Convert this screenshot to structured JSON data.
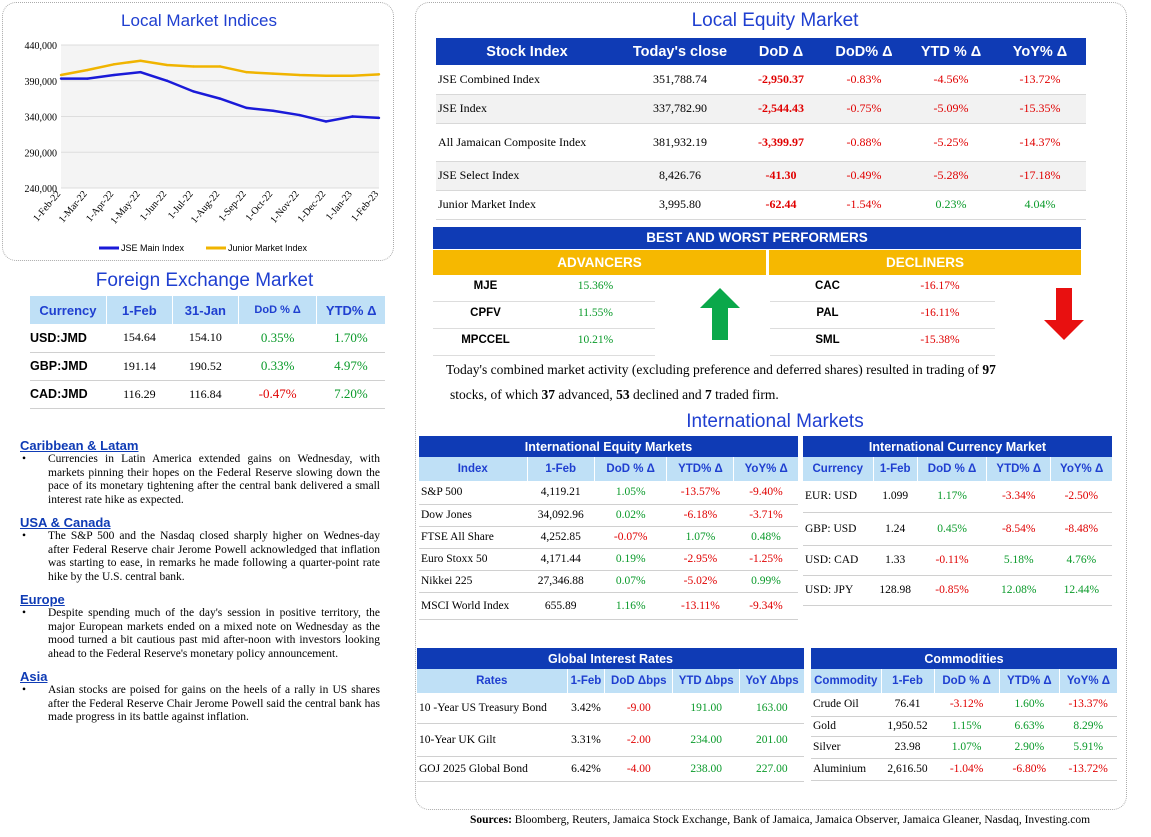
{
  "indices_chart": {
    "title": "Local Market Indices",
    "chart_data": {
      "type": "line",
      "title": "Local Market Indices",
      "x": [
        "1-Feb-22",
        "1-Mar-22",
        "1-Apr-22",
        "1-May-22",
        "1-Jun-22",
        "1-Jul-22",
        "1-Aug-22",
        "1-Sep-22",
        "1-Oct-22",
        "1-Nov-22",
        "1-Dec-22",
        "1-Jan-23",
        "1-Feb-23"
      ],
      "ylim": [
        240000,
        440000
      ],
      "yticks": [
        "440,000",
        "390,000",
        "340,000",
        "290,000",
        "240,000"
      ],
      "series": [
        {
          "name": "JSE Main Index",
          "color": "#1a1ad8",
          "values": [
            393000,
            393000,
            398000,
            402000,
            390000,
            375000,
            365000,
            352000,
            348000,
            342000,
            333000,
            340000,
            338000
          ]
        },
        {
          "name": "Junior Market Index",
          "color": "#f0b400",
          "values": [
            398000,
            405000,
            413000,
            418000,
            412000,
            410000,
            410000,
            402000,
            400000,
            398000,
            397000,
            397000,
            399000
          ]
        }
      ]
    }
  },
  "fx": {
    "title": "Foreign Exchange Market",
    "headers": [
      "Currency",
      "1-Feb",
      "31-Jan",
      "DoD % Δ",
      "YTD% Δ"
    ],
    "rows": [
      {
        "cur": "USD:JMD",
        "a": "154.64",
        "b": "154.10",
        "dod": "0.35%",
        "ytd": "1.70%"
      },
      {
        "cur": "GBP:JMD",
        "a": "191.14",
        "b": "190.52",
        "dod": "0.33%",
        "ytd": "4.97%"
      },
      {
        "cur": "CAD:JMD",
        "a": "116.29",
        "b": "116.84",
        "dod": "-0.47%",
        "ytd": "7.20%"
      }
    ]
  },
  "news": [
    {
      "heading": "Caribbean & Latam",
      "text": "Currencies in Latin America extended gains on Wednesday, with markets pinning their hopes on the Federal Reserve slowing down the pace of its monetary tightening after the central bank delivered a small interest rate hike as expected."
    },
    {
      "heading": "USA & Canada",
      "text": "The S&P 500 and the Nasdaq closed sharply higher on Wednes-day after Federal Reserve chair Jerome Powell acknowledged that inflation was starting to ease, in remarks he made following a quarter-point rate hike by the U.S. central bank."
    },
    {
      "heading": "Europe",
      "text": "Despite spending much of the day's session in positive territory, the major European markets ended on a mixed note on Wednesday as the mood turned a bit cautious past mid after-noon with investors looking ahead to the Federal Reserve's monetary policy announcement."
    },
    {
      "heading": "Asia",
      "text": "Asian stocks are poised for gains on the heels of a rally in US shares after the Federal Reserve Chair Jerome Powell said the central bank has made progress in its battle against inflation."
    }
  ],
  "equity": {
    "title": "Local Equity Market",
    "headers": [
      "Stock Index",
      "Today's close",
      "DoD  Δ",
      "DoD% Δ",
      "YTD % Δ",
      "YoY% Δ"
    ],
    "rows": [
      {
        "name": "JSE Combined Index",
        "close": "351,788.74",
        "dod": "-2,950.37",
        "dodp": "-0.83%",
        "ytd": "-4.56%",
        "yoy": "-13.72%"
      },
      {
        "name": "JSE Index",
        "close": "337,782.90",
        "dod": "-2,544.43",
        "dodp": "-0.75%",
        "ytd": "-5.09%",
        "yoy": "-15.35%"
      },
      {
        "name": "All Jamaican Composite Index",
        "close": "381,932.19",
        "dod": "-3,399.97",
        "dodp": "-0.88%",
        "ytd": "-5.25%",
        "yoy": "-14.37%"
      },
      {
        "name": "JSE Select Index",
        "close": "8,426.76",
        "dod": "-41.30",
        "dodp": "-0.49%",
        "ytd": "-5.28%",
        "yoy": "-17.18%"
      },
      {
        "name": "Junior Market Index",
        "close": "3,995.80",
        "dod": "-62.44",
        "dodp": "-1.54%",
        "ytd": "0.23%",
        "yoy": "4.04%"
      }
    ]
  },
  "performers": {
    "title": "BEST AND WORST PERFORMERS",
    "adv_label": "ADVANCERS",
    "dec_label": "DECLINERS",
    "advancers": [
      {
        "t": "MJE",
        "v": "15.36%"
      },
      {
        "t": "CPFV",
        "v": "11.55%"
      },
      {
        "t": "MPCCEL",
        "v": "10.21%"
      }
    ],
    "decliners": [
      {
        "t": "CAC",
        "v": "-16.17%"
      },
      {
        "t": "PAL",
        "v": "-16.11%"
      },
      {
        "t": "SML",
        "v": "-15.38%"
      }
    ]
  },
  "activity": {
    "p1": "Today's combined market activity (excluding preference and deferred shares) resulted in trading of ",
    "n1": "97",
    "p2": "stocks, of which ",
    "n2": "37",
    "p3": " advanced, ",
    "n3": "53",
    "p4": " declined and ",
    "n4": "7",
    "p5": " traded firm."
  },
  "intl": {
    "title": "International Markets",
    "equity": {
      "title": "International Equity Markets",
      "headers": [
        "Index",
        "1-Feb",
        "DoD % Δ",
        "YTD% Δ",
        "YoY% Δ"
      ],
      "rows": [
        {
          "n": "S&P 500",
          "v": "4,119.21",
          "d": "1.05%",
          "y": "-13.57%",
          "yy": "-9.40%"
        },
        {
          "n": "Dow Jones",
          "v": "34,092.96",
          "d": "0.02%",
          "y": "-6.18%",
          "yy": "-3.71%"
        },
        {
          "n": "FTSE All Share",
          "v": "4,252.85",
          "d": "-0.07%",
          "y": "1.07%",
          "yy": "0.48%"
        },
        {
          "n": "Euro Stoxx 50",
          "v": "4,171.44",
          "d": "0.19%",
          "y": "-2.95%",
          "yy": "-1.25%"
        },
        {
          "n": "Nikkei 225",
          "v": "27,346.88",
          "d": "0.07%",
          "y": "-5.02%",
          "yy": "0.99%"
        },
        {
          "n": "MSCI World Index",
          "v": "655.89",
          "d": "1.16%",
          "y": "-13.11%",
          "yy": "-9.34%"
        }
      ]
    },
    "currency": {
      "title": "International Currency Market",
      "headers": [
        "Currency",
        "1-Feb",
        "DoD % Δ",
        "YTD% Δ",
        "YoY% Δ"
      ],
      "rows": [
        {
          "n": "EUR: USD",
          "v": "1.099",
          "d": "1.17%",
          "y": "-3.34%",
          "yy": "-2.50%"
        },
        {
          "n": "GBP: USD",
          "v": "1.24",
          "d": "0.45%",
          "y": "-8.54%",
          "yy": "-8.48%"
        },
        {
          "n": "USD: CAD",
          "v": "1.33",
          "d": "-0.11%",
          "y": "5.18%",
          "yy": "4.76%"
        },
        {
          "n": "USD: JPY",
          "v": "128.98",
          "d": "-0.85%",
          "y": "12.08%",
          "yy": "12.44%"
        }
      ]
    },
    "rates": {
      "title": "Global Interest Rates",
      "headers": [
        "Rates",
        "1-Feb",
        "DoD Δbps",
        "YTD Δbps",
        "YoY Δbps"
      ],
      "rows": [
        {
          "n": "10 -Year US Treasury Bond",
          "v": "3.42%",
          "d": "-9.00",
          "y": "191.00",
          "yy": "163.00"
        },
        {
          "n": "10-Year UK Gilt",
          "v": "3.31%",
          "d": "-2.00",
          "y": "234.00",
          "yy": "201.00"
        },
        {
          "n": "GOJ 2025 Global Bond",
          "v": "6.42%",
          "d": "-4.00",
          "y": "238.00",
          "yy": "227.00"
        }
      ]
    },
    "commodities": {
      "title": "Commodities",
      "headers": [
        "Commodity",
        "1-Feb",
        "DoD % Δ",
        "YTD% Δ",
        "YoY% Δ"
      ],
      "rows": [
        {
          "n": "Crude Oil",
          "v": "76.41",
          "d": "-3.12%",
          "y": "1.60%",
          "yy": "-13.37%"
        },
        {
          "n": "Gold",
          "v": "1,950.52",
          "d": "1.15%",
          "y": "6.63%",
          "yy": "8.29%"
        },
        {
          "n": "Silver",
          "v": "23.98",
          "d": "1.07%",
          "y": "2.90%",
          "yy": "5.91%"
        },
        {
          "n": "Aluminium",
          "v": "2,616.50",
          "d": "-1.04%",
          "y": "-6.80%",
          "yy": "-13.72%"
        }
      ]
    }
  },
  "sources": {
    "label": "Sources:",
    "text": " Bloomberg, Reuters, Jamaica Stock Exchange, Bank of Jamaica, Jamaica Observer, Jamaica Gleaner, Nasdaq, Investing.com"
  },
  "colors": {
    "header_blue": "#0f3bb5",
    "sub_blue": "#bfe0f6",
    "gold": "#f6b800",
    "red": "#e00000",
    "green": "#0a9a2a"
  }
}
